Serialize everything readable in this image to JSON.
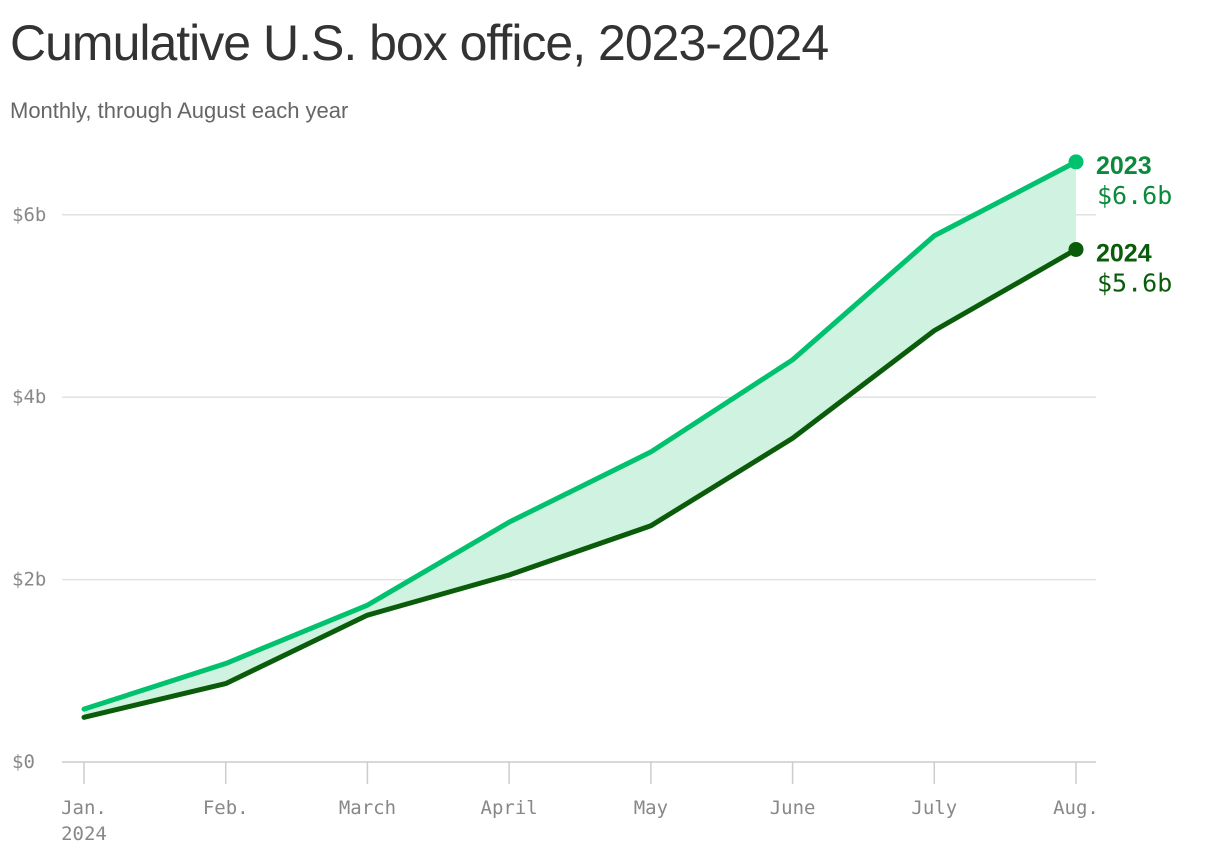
{
  "title": "Cumulative U.S. box office, 2023-2024",
  "subtitle": "Monthly, through August each year",
  "chart_data": {
    "type": "line",
    "x_categories": [
      "Jan.",
      "Feb.",
      "March",
      "April",
      "May",
      "June",
      "July",
      "Aug."
    ],
    "x_subtitle": "2024",
    "y_ticks": [
      {
        "value": 0,
        "label": "$0"
      },
      {
        "value": 2,
        "label": "$2b"
      },
      {
        "value": 4,
        "label": "$4b"
      },
      {
        "value": 6,
        "label": "$6b"
      }
    ],
    "ylim": [
      0,
      6.6
    ],
    "grid": true,
    "series": [
      {
        "name": "2023",
        "color": "#00c16e",
        "values": [
          0.58,
          1.08,
          1.72,
          2.63,
          3.4,
          4.41,
          5.77,
          6.58
        ],
        "end_label": "$6.6b",
        "label_color": "#0a8a3c"
      },
      {
        "name": "2024",
        "color": "#0a5c0a",
        "values": [
          0.49,
          0.86,
          1.61,
          2.05,
          2.59,
          3.55,
          4.73,
          5.62
        ],
        "end_label": "$5.6b",
        "label_color": "#0a5c0a"
      }
    ],
    "fill_between": {
      "color": "#cff3e0"
    }
  }
}
